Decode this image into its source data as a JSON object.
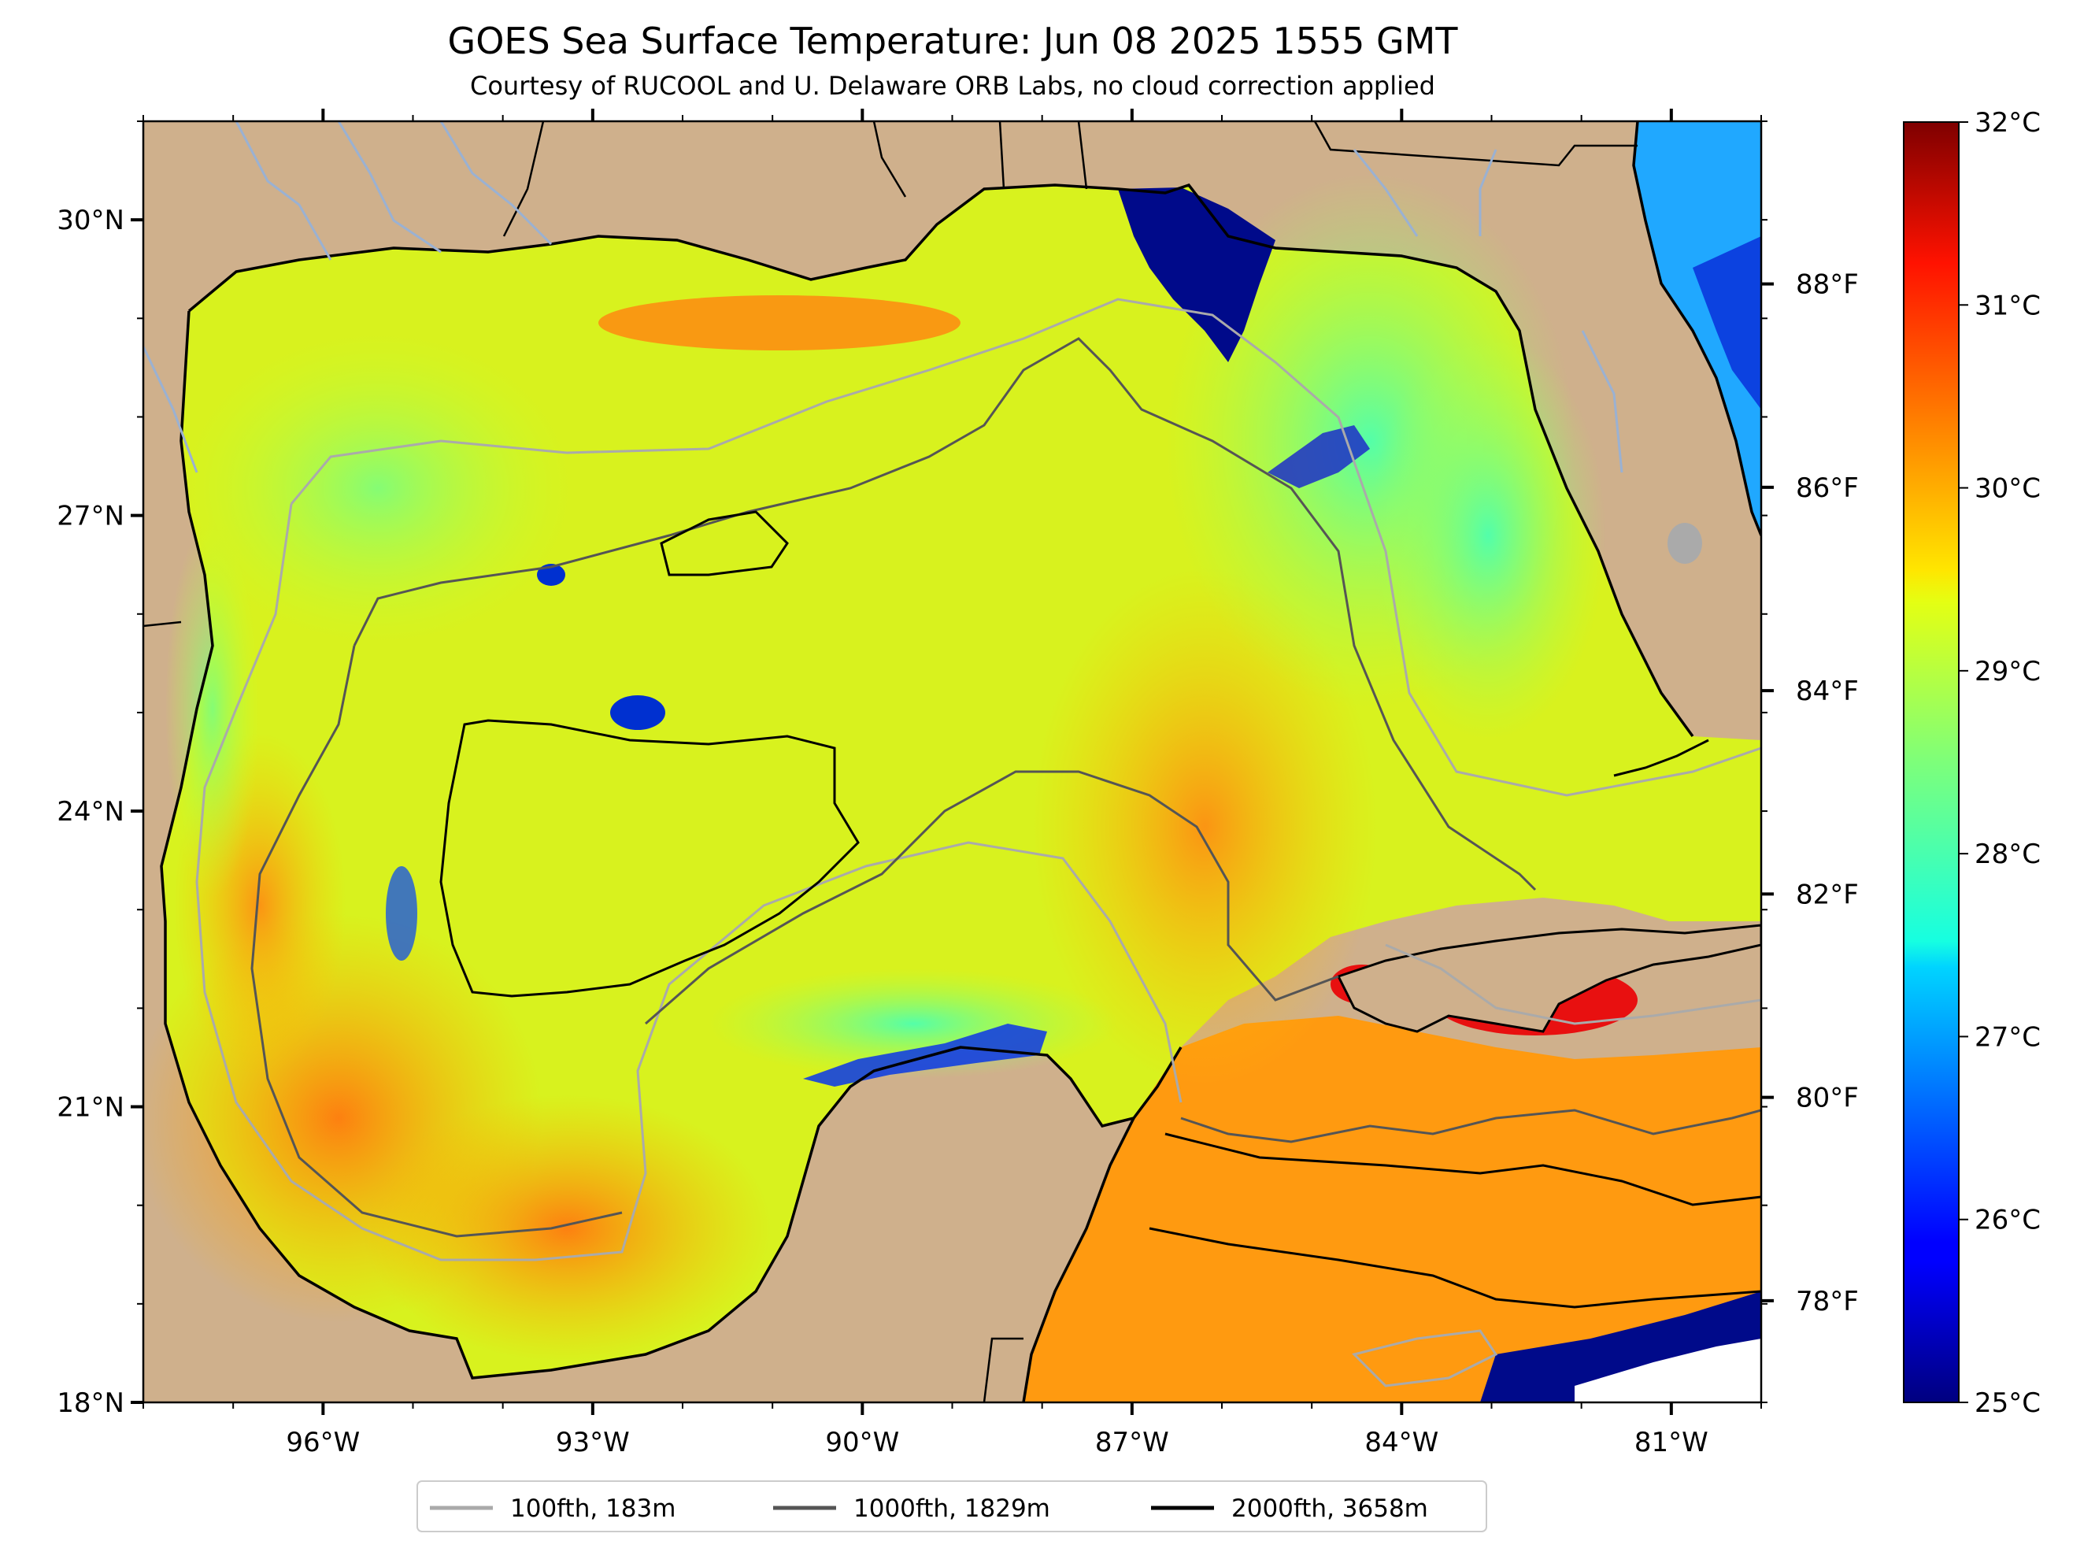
{
  "title": "GOES Sea Surface Temperature: Jun 08 2025 1555 GMT",
  "subtitle": "Courtesy of RUCOOL and U. Delaware ORB Labs, no cloud correction applied",
  "map": {
    "lon_range": [
      -98.0,
      -80.0
    ],
    "lat_range": [
      18.0,
      31.0
    ],
    "lon_ticks": [
      {
        "value": -96,
        "label": "96°W"
      },
      {
        "value": -93,
        "label": "93°W"
      },
      {
        "value": -90,
        "label": "90°W"
      },
      {
        "value": -87,
        "label": "87°W"
      },
      {
        "value": -84,
        "label": "84°W"
      },
      {
        "value": -81,
        "label": "81°W"
      }
    ],
    "lat_ticks": [
      {
        "value": 30,
        "label": "30°N"
      },
      {
        "value": 27,
        "label": "27°N"
      },
      {
        "value": 24,
        "label": "24°N"
      },
      {
        "value": 21,
        "label": "21°N"
      },
      {
        "value": 18,
        "label": "18°N"
      }
    ],
    "land_color": "#cfb08c",
    "river_color": "#9ab1d2"
  },
  "fahrenheit_ticks": [
    {
      "value": 88,
      "label": "88°F"
    },
    {
      "value": 86,
      "label": "86°F"
    },
    {
      "value": 84,
      "label": "84°F"
    },
    {
      "value": 82,
      "label": "82°F"
    },
    {
      "value": 80,
      "label": "80°F"
    },
    {
      "value": 78,
      "label": "78°F"
    }
  ],
  "colorbar": {
    "range_c": [
      25,
      32
    ],
    "colormap": "jet",
    "ticks": [
      {
        "value": 32,
        "label": "32°C"
      },
      {
        "value": 31,
        "label": "31°C"
      },
      {
        "value": 30,
        "label": "30°C"
      },
      {
        "value": 29,
        "label": "29°C"
      },
      {
        "value": 28,
        "label": "28°C"
      },
      {
        "value": 27,
        "label": "27°C"
      },
      {
        "value": 26,
        "label": "26°C"
      },
      {
        "value": 25,
        "label": "25°C"
      }
    ]
  },
  "legend": {
    "items": [
      {
        "label": "100fth, 183m",
        "color": "#aaaaaa"
      },
      {
        "label": "1000fth, 1829m",
        "color": "#555555"
      },
      {
        "label": "2000fth, 3658m",
        "color": "#000000"
      }
    ]
  }
}
